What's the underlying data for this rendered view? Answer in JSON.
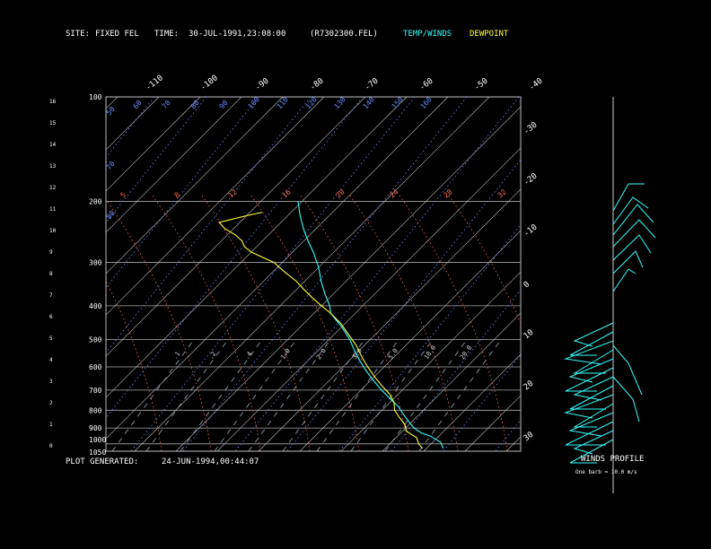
{
  "header": {
    "site_label": "SITE:",
    "site_value": "FIXED FEL",
    "time_label": "TIME:",
    "time_value": "30-JUL-1991,23:08:00",
    "file": "(R7302300.FEL)",
    "temp_legend": "TEMP/WINDS",
    "dew_legend": "DEWPOINT"
  },
  "footer": {
    "plot_generated_label": "PLOT GENERATED:",
    "plot_generated_value": "24-JUN-1994,00:44:07",
    "winds_title": "WINDS PROFILE",
    "barb_note": "One barb = 10.0 m/s"
  },
  "colors": {
    "temp": "#33ffff",
    "dewpoint": "#ffff33",
    "isotherm": "#c8c8c8",
    "dry_adiabat": "#6b8cff",
    "moist_adiabat": "#ff6b4a",
    "mixing_ratio": "#9ab0c0"
  },
  "chart_data": {
    "type": "line",
    "title": "",
    "ylabel_left_km": [
      "0",
      "1",
      "2",
      "3",
      "4",
      "5",
      "6",
      "7",
      "8",
      "9",
      "10",
      "11",
      "12",
      "13",
      "14",
      "15",
      "16"
    ],
    "pressure_levels_hpa": [
      "100",
      "200",
      "300",
      "400",
      "500",
      "600",
      "700",
      "800",
      "900",
      "1000",
      "1050"
    ],
    "isotherm_labels_top": [
      "-110",
      "-100",
      "-90",
      "-80",
      "-70",
      "-60",
      "-50",
      "-40"
    ],
    "isotherm_labels_right": [
      "-30",
      "-20",
      "-10",
      "0",
      "10",
      "20",
      "30"
    ],
    "dry_adiabat_labels": [
      "50",
      "70",
      "80",
      "60",
      "70",
      "80",
      "90",
      "100",
      "110",
      "120",
      "130",
      "140",
      "150",
      "160"
    ],
    "mixing_ratio_labels": [
      ".1",
      ".2",
      ".4",
      "1.0",
      "2.0",
      "3.0",
      "5.0",
      "10.0",
      "20.0"
    ],
    "moist_adiabat_labels": [
      "5",
      "8",
      "12",
      "16",
      "20",
      "24",
      "28",
      "32"
    ],
    "series": [
      {
        "name": "TEMP/WINDS",
        "pressure": [
          1030,
          1010,
          990,
          970,
          950,
          930,
          900,
          860,
          820,
          780,
          740,
          700,
          660,
          620,
          580,
          540,
          500,
          460,
          420,
          400,
          370,
          340,
          310,
          280,
          260,
          240,
          220,
          200
        ],
        "temperature": [
          24,
          23,
          22,
          20,
          18,
          15,
          12,
          9,
          6,
          3,
          -1,
          -5,
          -9,
          -13,
          -17,
          -21,
          -25,
          -30,
          -36,
          -38,
          -42,
          -46,
          -50,
          -55,
          -59,
          -63,
          -67,
          -71
        ]
      },
      {
        "name": "DEWPOINT",
        "pressure": [
          1030,
          1000,
          960,
          920,
          880,
          840,
          800,
          760,
          720,
          680,
          640,
          600,
          560,
          520,
          480,
          450,
          420,
          400,
          380,
          360,
          340,
          320,
          300,
          290,
          280,
          270,
          260,
          250,
          240,
          230,
          220,
          215
        ],
        "dewpoint": [
          19,
          17,
          15,
          11,
          9,
          6,
          3,
          1,
          -2,
          -6,
          -10,
          -14,
          -18,
          -22,
          -27,
          -31,
          -36,
          -40,
          -44,
          -48,
          -52,
          -57,
          -62,
          -66,
          -70,
          -73,
          -75,
          -78,
          -82,
          -85,
          -80,
          -77
        ]
      }
    ],
    "winds_profile": {
      "barb_unit_ms": 10.0
    }
  }
}
